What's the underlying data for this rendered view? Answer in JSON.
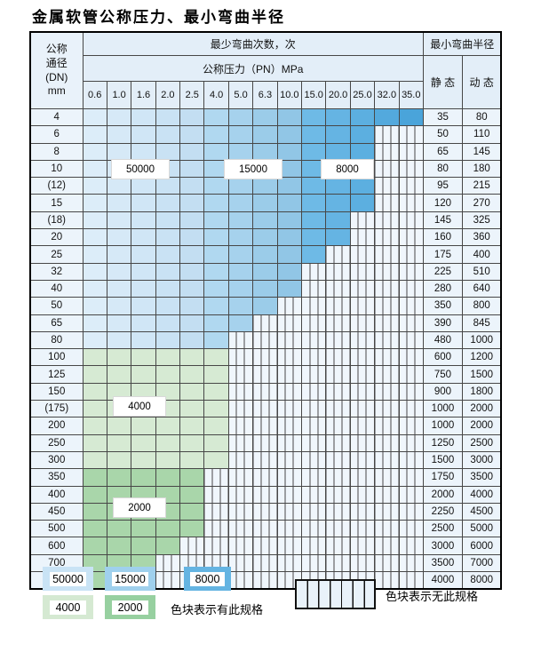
{
  "title": "金属软管公称压力、最小弯曲半径",
  "table": {
    "corner": {
      "lines": [
        "公称",
        "通径",
        "(DN)",
        "mm"
      ]
    },
    "bend_cycles_header": "最少弯曲次数，次",
    "bend_radius_header": "最小弯曲半径",
    "pressure_header": "公称压力（PN）MPa",
    "static_header": "静 态",
    "dynamic_header": "动 态",
    "pressure_columns": [
      "0.6",
      "1.0",
      "1.6",
      "2.0",
      "2.5",
      "4.0",
      "5.0",
      "6.3",
      "10.0",
      "15.0",
      "20.0",
      "25.0",
      "32.0",
      "35.0"
    ],
    "rows": [
      {
        "dn": "4",
        "colored": 14,
        "band": "blue",
        "available_through_pn": "35.0",
        "static": "35",
        "dynamic": "80"
      },
      {
        "dn": "6",
        "colored": 12,
        "band": "blue",
        "available_through_pn": "25.0",
        "static": "50",
        "dynamic": "110"
      },
      {
        "dn": "8",
        "colored": 12,
        "band": "blue",
        "available_through_pn": "25.0",
        "static": "65",
        "dynamic": "145"
      },
      {
        "dn": "10",
        "colored": 12,
        "band": "blue",
        "available_through_pn": "25.0",
        "static": "80",
        "dynamic": "180"
      },
      {
        "dn": "(12)",
        "colored": 12,
        "band": "blue",
        "available_through_pn": "25.0",
        "static": "95",
        "dynamic": "215"
      },
      {
        "dn": "15",
        "colored": 12,
        "band": "blue",
        "available_through_pn": "25.0",
        "static": "120",
        "dynamic": "270"
      },
      {
        "dn": "(18)",
        "colored": 11,
        "band": "blue",
        "available_through_pn": "20.0",
        "static": "145",
        "dynamic": "325"
      },
      {
        "dn": "20",
        "colored": 11,
        "band": "blue",
        "available_through_pn": "20.0",
        "static": "160",
        "dynamic": "360"
      },
      {
        "dn": "25",
        "colored": 10,
        "band": "blue",
        "available_through_pn": "15.0",
        "static": "175",
        "dynamic": "400"
      },
      {
        "dn": "32",
        "colored": 9,
        "band": "blue",
        "available_through_pn": "10.0",
        "static": "225",
        "dynamic": "510"
      },
      {
        "dn": "40",
        "colored": 9,
        "band": "blue",
        "available_through_pn": "10.0",
        "static": "280",
        "dynamic": "640"
      },
      {
        "dn": "50",
        "colored": 8,
        "band": "blue",
        "available_through_pn": "6.3",
        "static": "350",
        "dynamic": "800"
      },
      {
        "dn": "65",
        "colored": 7,
        "band": "blue",
        "available_through_pn": "5.0",
        "static": "390",
        "dynamic": "845"
      },
      {
        "dn": "80",
        "colored": 6,
        "band": "blue",
        "available_through_pn": "4.0",
        "static": "480",
        "dynamic": "1000"
      },
      {
        "dn": "100",
        "colored": 6,
        "band": "g4000",
        "available_through_pn": "4.0",
        "static": "600",
        "dynamic": "1200"
      },
      {
        "dn": "125",
        "colored": 6,
        "band": "g4000",
        "available_through_pn": "4.0",
        "static": "750",
        "dynamic": "1500"
      },
      {
        "dn": "150",
        "colored": 6,
        "band": "g4000",
        "available_through_pn": "4.0",
        "static": "900",
        "dynamic": "1800"
      },
      {
        "dn": "(175)",
        "colored": 6,
        "band": "g4000",
        "available_through_pn": "4.0",
        "static": "1000",
        "dynamic": "2000"
      },
      {
        "dn": "200",
        "colored": 6,
        "band": "g4000",
        "available_through_pn": "4.0",
        "static": "1000",
        "dynamic": "2000"
      },
      {
        "dn": "250",
        "colored": 6,
        "band": "g4000",
        "available_through_pn": "4.0",
        "static": "1250",
        "dynamic": "2500"
      },
      {
        "dn": "300",
        "colored": 6,
        "band": "g4000",
        "available_through_pn": "4.0",
        "static": "1500",
        "dynamic": "3000"
      },
      {
        "dn": "350",
        "colored": 5,
        "band": "g2000",
        "available_through_pn": "2.5",
        "static": "1750",
        "dynamic": "3500"
      },
      {
        "dn": "400",
        "colored": 5,
        "band": "g2000",
        "available_through_pn": "2.5",
        "static": "2000",
        "dynamic": "4000"
      },
      {
        "dn": "450",
        "colored": 5,
        "band": "g2000",
        "available_through_pn": "2.5",
        "static": "2250",
        "dynamic": "4500"
      },
      {
        "dn": "500",
        "colored": 5,
        "band": "g2000",
        "available_through_pn": "2.5",
        "static": "2500",
        "dynamic": "5000"
      },
      {
        "dn": "600",
        "colored": 4,
        "band": "g2000",
        "available_through_pn": "2.0",
        "static": "3000",
        "dynamic": "6000"
      },
      {
        "dn": "700",
        "colored": 3,
        "band": "g2000",
        "available_through_pn": "1.6",
        "static": "3500",
        "dynamic": "7000"
      },
      {
        "dn": "800",
        "colored": 3,
        "band": "g2000",
        "available_through_pn": "1.6",
        "static": "4000",
        "dynamic": "8000"
      }
    ],
    "cycle_bands": [
      {
        "cycles": "50000",
        "pn_columns": [
          "0.6",
          "1.0",
          "1.6",
          "2.0",
          "2.5"
        ]
      },
      {
        "cycles": "15000",
        "pn_columns": [
          "4.0",
          "5.0",
          "6.3",
          "10.0"
        ]
      },
      {
        "cycles": "8000",
        "pn_columns": [
          "15.0",
          "20.0",
          "25.0",
          "32.0",
          "35.0"
        ]
      },
      {
        "cycles": "4000",
        "dn_rows": "100-300"
      },
      {
        "cycles": "2000",
        "dn_rows": "350-800"
      }
    ]
  },
  "legend": {
    "items": [
      {
        "label": "50000",
        "color": "#c9e3f5"
      },
      {
        "label": "15000",
        "color": "#9fd0ed"
      },
      {
        "label": "8000",
        "color": "#64b4e2"
      },
      {
        "label": "4000",
        "color": "#d5e9d2"
      },
      {
        "label": "2000",
        "color": "#97d0a0"
      }
    ],
    "has_spec_text": "色块表示有此规格",
    "no_spec_text": "色块表示无此规格"
  },
  "colors": {
    "blue_cols": [
      "#dcedf9",
      "#d6e9f7",
      "#d0e6f6",
      "#c9e2f4",
      "#c3def2",
      "#b0d8f0",
      "#a6d2ed",
      "#9bcce9",
      "#91c6e6",
      "#6ebae6",
      "#65b4e3",
      "#5cafe0",
      "#53a9dd",
      "#4aa4da"
    ],
    "green_4000": "#d6ead3",
    "green_2000": "#a9d6aa",
    "striped_bg": "#f0f6fc",
    "grid_line": "#474747"
  }
}
